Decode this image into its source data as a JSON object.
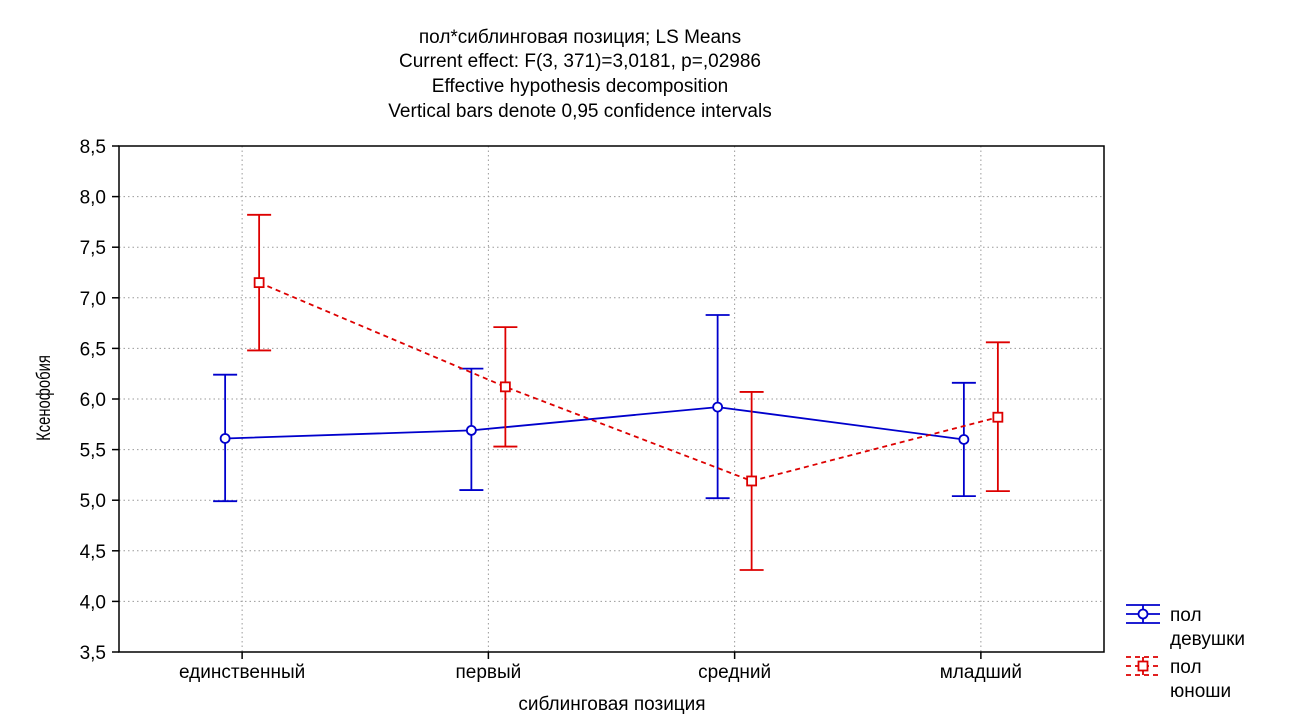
{
  "chart_data": {
    "type": "line",
    "title_lines": [
      "пол*сиблинговая позиция; LS Means",
      "Current effect: F(3, 371)=3,0181, p=,02986",
      "Effective hypothesis decomposition",
      "Vertical bars denote 0,95 confidence intervals"
    ],
    "xlabel": "сиблинговая позиция",
    "ylabel": "Ксенофобия",
    "categories": [
      "единственный",
      "первый",
      "средний",
      "младший"
    ],
    "ylim": [
      3.5,
      8.5
    ],
    "yticks": [
      "3,5",
      "4,0",
      "4,5",
      "5,0",
      "5,5",
      "6,0",
      "6,5",
      "7,0",
      "7,5",
      "8,0",
      "8,5"
    ],
    "grid": true,
    "legend_position": "bottom-right",
    "series": [
      {
        "name_line1": "пол",
        "name_line2": "девушки",
        "color": "#0000cc",
        "marker": "circle",
        "line_style": "solid",
        "values": [
          5.61,
          5.69,
          5.92,
          5.6
        ],
        "ci_low": [
          4.99,
          5.1,
          5.02,
          5.04
        ],
        "ci_high": [
          6.24,
          6.3,
          6.83,
          6.16
        ]
      },
      {
        "name_line1": "пол",
        "name_line2": "юноши",
        "color": "#dd0000",
        "marker": "square",
        "line_style": "dashed",
        "values": [
          7.15,
          6.12,
          5.19,
          5.82
        ],
        "ci_low": [
          6.48,
          5.53,
          4.31,
          5.09
        ],
        "ci_high": [
          7.82,
          6.71,
          6.07,
          6.56
        ]
      }
    ]
  }
}
